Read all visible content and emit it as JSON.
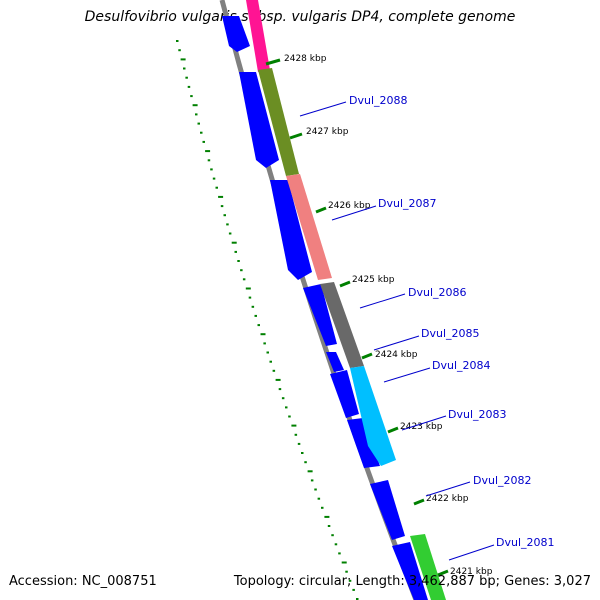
{
  "title": "Desulfovibrio vulgaris subsp. vulgaris DP4, complete genome",
  "footer": {
    "accession": "Accession: NC_008751",
    "stats": "Topology: circular; Length: 3,462,887 bp; Genes: 3,027"
  },
  "ticks": [
    "2428 kbp",
    "2427 kbp",
    "2426 kbp",
    "2425 kbp",
    "2424 kbp",
    "2423 kbp",
    "2422 kbp",
    "2421 kbp"
  ],
  "genes": [
    "Dvul_2088",
    "Dvul_2087",
    "Dvul_2086",
    "Dvul_2085",
    "Dvul_2084",
    "Dvul_2083",
    "Dvul_2082",
    "Dvul_2081"
  ],
  "colors": {
    "backbone": "#808080",
    "cds": "#0000ff",
    "gc_skew": "#008000",
    "label": "#0000cc",
    "feature_colors": [
      "#ff1493",
      "#6b8e23",
      "#f08080",
      "#696969",
      "#00bfff",
      "#32cd32"
    ]
  }
}
